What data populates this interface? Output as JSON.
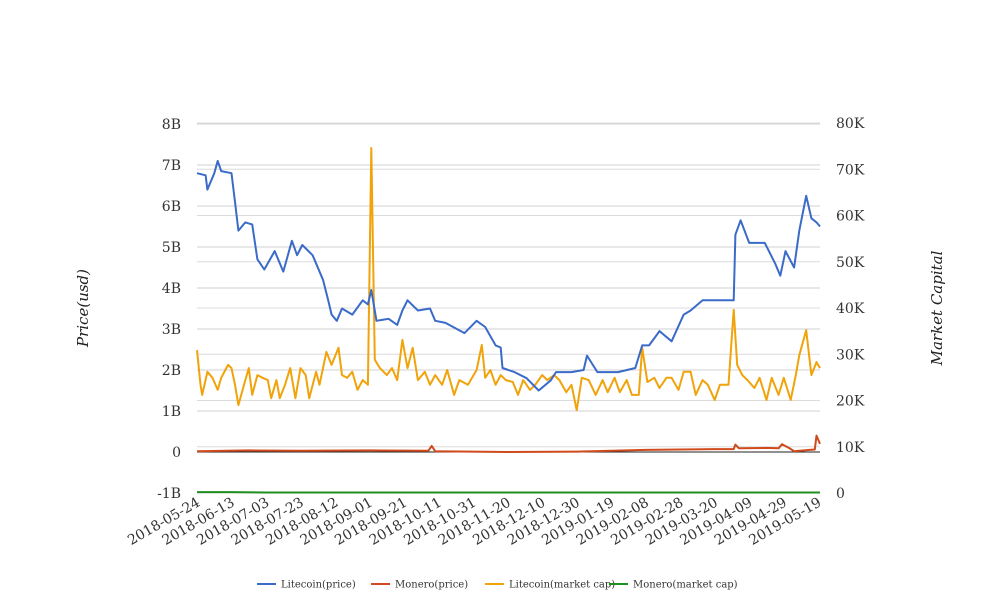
{
  "chart_data": {
    "type": "line",
    "title": "",
    "xlabel": "",
    "ylabel_left": "Price(usd)",
    "ylabel_right": "Market Capital",
    "x_start_date": "2018-05-24",
    "x_unit": "days since 2018-05-24",
    "x_range": [
      0,
      361
    ],
    "x_tick_labels": [
      "2018-05-24",
      "2018-06-13",
      "2018-07-03",
      "2018-07-23",
      "2018-08-12",
      "2018-09-01",
      "2018-09-21",
      "2018-10-11",
      "2018-10-31",
      "2018-11-20",
      "2018-12-10",
      "2018-12-30",
      "2019-01-19",
      "2019-02-08",
      "2019-02-28",
      "2019-03-20",
      "2019-04-09",
      "2019-04-29",
      "2019-05-19"
    ],
    "x_tick_step_days": 20,
    "ylim_left": [
      -1,
      8
    ],
    "ylim_left_unit": "B",
    "y_ticks_left": [
      "-1B",
      "0",
      "1B",
      "2B",
      "3B",
      "4B",
      "5B",
      "6B",
      "7B",
      "8B"
    ],
    "ylim_right": [
      0,
      80
    ],
    "ylim_right_unit": "K",
    "y_ticks_right": [
      "0",
      "10K",
      "20K",
      "30K",
      "40K",
      "50K",
      "60K",
      "70K",
      "80K"
    ],
    "grid": true,
    "legend_placement": "bottom-center",
    "series": [
      {
        "name": "Litecoin(price)",
        "axis": "left",
        "color": "#3a6bc9",
        "points": [
          [
            0,
            6.8
          ],
          [
            5,
            6.75
          ],
          [
            6,
            6.4
          ],
          [
            10,
            6.8
          ],
          [
            12,
            7.1
          ],
          [
            14,
            6.85
          ],
          [
            20,
            6.8
          ],
          [
            22,
            6.1
          ],
          [
            24,
            5.4
          ],
          [
            28,
            5.6
          ],
          [
            32,
            5.55
          ],
          [
            35,
            4.7
          ],
          [
            39,
            4.45
          ],
          [
            45,
            4.9
          ],
          [
            50,
            4.4
          ],
          [
            55,
            5.15
          ],
          [
            58,
            4.8
          ],
          [
            61,
            5.05
          ],
          [
            67,
            4.8
          ],
          [
            73,
            4.2
          ],
          [
            76,
            3.7
          ],
          [
            78,
            3.35
          ],
          [
            81,
            3.2
          ],
          [
            84,
            3.5
          ],
          [
            90,
            3.35
          ],
          [
            96,
            3.7
          ],
          [
            99,
            3.6
          ],
          [
            101,
            3.95
          ],
          [
            104,
            3.2
          ],
          [
            111,
            3.25
          ],
          [
            116,
            3.1
          ],
          [
            119,
            3.45
          ],
          [
            122,
            3.7
          ],
          [
            128,
            3.45
          ],
          [
            135,
            3.5
          ],
          [
            138,
            3.2
          ],
          [
            144,
            3.15
          ],
          [
            155,
            2.9
          ],
          [
            162,
            3.2
          ],
          [
            167,
            3.05
          ],
          [
            173,
            2.6
          ],
          [
            176,
            2.55
          ],
          [
            177,
            2.05
          ],
          [
            184,
            1.95
          ],
          [
            191,
            1.8
          ],
          [
            198,
            1.5
          ],
          [
            205,
            1.75
          ],
          [
            208,
            1.95
          ],
          [
            217,
            1.95
          ],
          [
            224,
            2.0
          ],
          [
            226,
            2.35
          ],
          [
            232,
            1.95
          ],
          [
            244,
            1.95
          ],
          [
            254,
            2.05
          ],
          [
            258,
            2.6
          ],
          [
            262,
            2.6
          ],
          [
            268,
            2.95
          ],
          [
            275,
            2.7
          ],
          [
            282,
            3.35
          ],
          [
            286,
            3.45
          ],
          [
            293,
            3.7
          ],
          [
            303,
            3.7
          ],
          [
            311,
            3.7
          ],
          [
            312,
            5.3
          ],
          [
            315,
            5.65
          ],
          [
            320,
            5.1
          ],
          [
            329,
            5.1
          ],
          [
            335,
            4.6
          ],
          [
            338,
            4.3
          ],
          [
            341,
            4.9
          ],
          [
            346,
            4.5
          ],
          [
            349,
            5.4
          ],
          [
            353,
            6.25
          ],
          [
            356,
            5.7
          ],
          [
            359,
            5.6
          ],
          [
            361,
            5.5
          ]
        ]
      },
      {
        "name": "Monero(price)",
        "axis": "left",
        "color": "#d04a1e",
        "points": [
          [
            0,
            0.02
          ],
          [
            30,
            0.04
          ],
          [
            60,
            0.03
          ],
          [
            100,
            0.04
          ],
          [
            134,
            0.03
          ],
          [
            136,
            0.15
          ],
          [
            138,
            0.02
          ],
          [
            180,
            0.0
          ],
          [
            220,
            0.01
          ],
          [
            260,
            0.05
          ],
          [
            300,
            0.07
          ],
          [
            311,
            0.07
          ],
          [
            312,
            0.18
          ],
          [
            314,
            0.09
          ],
          [
            330,
            0.1
          ],
          [
            337,
            0.09
          ],
          [
            339,
            0.19
          ],
          [
            343,
            0.1
          ],
          [
            346,
            0.02
          ],
          [
            355,
            0.05
          ],
          [
            358,
            0.06
          ],
          [
            359,
            0.4
          ],
          [
            361,
            0.2
          ]
        ]
      },
      {
        "name": "Litecoin(market cap)",
        "axis": "right",
        "color": "#f0a30a",
        "points": [
          [
            0,
            30.9
          ],
          [
            2,
            23.4
          ],
          [
            3,
            21.2
          ],
          [
            6,
            26.2
          ],
          [
            9,
            24.9
          ],
          [
            12,
            22.3
          ],
          [
            14,
            24.9
          ],
          [
            18,
            27.7
          ],
          [
            20,
            27.0
          ],
          [
            22,
            23.4
          ],
          [
            24,
            19.0
          ],
          [
            28,
            24.4
          ],
          [
            30,
            27.0
          ],
          [
            32,
            21.2
          ],
          [
            35,
            25.5
          ],
          [
            38,
            24.9
          ],
          [
            41,
            24.4
          ],
          [
            43,
            20.5
          ],
          [
            46,
            24.4
          ],
          [
            48,
            20.5
          ],
          [
            51,
            23.4
          ],
          [
            54,
            27.0
          ],
          [
            57,
            20.5
          ],
          [
            60,
            27.0
          ],
          [
            63,
            25.5
          ],
          [
            65,
            20.5
          ],
          [
            69,
            26.2
          ],
          [
            71,
            23.4
          ],
          [
            75,
            30.5
          ],
          [
            78,
            27.7
          ],
          [
            82,
            31.4
          ],
          [
            84,
            25.5
          ],
          [
            87,
            24.9
          ],
          [
            90,
            26.2
          ],
          [
            93,
            22.3
          ],
          [
            96,
            24.4
          ],
          [
            99,
            23.4
          ],
          [
            101,
            74.6
          ],
          [
            103,
            28.8
          ],
          [
            106,
            27.0
          ],
          [
            110,
            25.5
          ],
          [
            113,
            27.0
          ],
          [
            116,
            24.4
          ],
          [
            119,
            33.1
          ],
          [
            122,
            27.0
          ],
          [
            125,
            31.4
          ],
          [
            128,
            24.4
          ],
          [
            132,
            26.2
          ],
          [
            135,
            23.4
          ],
          [
            138,
            25.5
          ],
          [
            142,
            23.4
          ],
          [
            145,
            26.6
          ],
          [
            149,
            21.2
          ],
          [
            152,
            24.4
          ],
          [
            157,
            23.4
          ],
          [
            162,
            26.6
          ],
          [
            165,
            32.0
          ],
          [
            167,
            24.9
          ],
          [
            170,
            26.6
          ],
          [
            173,
            23.4
          ],
          [
            176,
            25.5
          ],
          [
            179,
            24.4
          ],
          [
            183,
            24.0
          ],
          [
            186,
            21.2
          ],
          [
            189,
            24.4
          ],
          [
            193,
            22.3
          ],
          [
            196,
            23.4
          ],
          [
            200,
            25.5
          ],
          [
            203,
            24.4
          ],
          [
            207,
            25.5
          ],
          [
            210,
            24.4
          ],
          [
            214,
            21.8
          ],
          [
            217,
            23.4
          ],
          [
            220,
            17.9
          ],
          [
            223,
            24.9
          ],
          [
            227,
            24.4
          ],
          [
            231,
            21.2
          ],
          [
            235,
            24.4
          ],
          [
            238,
            21.8
          ],
          [
            242,
            24.9
          ],
          [
            245,
            21.8
          ],
          [
            249,
            24.4
          ],
          [
            252,
            21.2
          ],
          [
            256,
            21.2
          ],
          [
            258,
            31.4
          ],
          [
            261,
            24.0
          ],
          [
            265,
            24.9
          ],
          [
            268,
            22.7
          ],
          [
            272,
            24.9
          ],
          [
            275,
            24.9
          ],
          [
            279,
            22.3
          ],
          [
            282,
            26.2
          ],
          [
            286,
            26.2
          ],
          [
            289,
            21.2
          ],
          [
            293,
            24.4
          ],
          [
            296,
            23.4
          ],
          [
            300,
            20.1
          ],
          [
            303,
            23.4
          ],
          [
            308,
            23.4
          ],
          [
            311,
            39.6
          ],
          [
            313,
            27.7
          ],
          [
            316,
            25.5
          ],
          [
            319,
            24.4
          ],
          [
            323,
            22.7
          ],
          [
            326,
            24.9
          ],
          [
            330,
            20.1
          ],
          [
            333,
            24.9
          ],
          [
            337,
            21.2
          ],
          [
            340,
            24.9
          ],
          [
            344,
            20.1
          ],
          [
            347,
            25.5
          ],
          [
            349,
            29.8
          ],
          [
            353,
            35.2
          ],
          [
            356,
            25.5
          ],
          [
            359,
            28.3
          ],
          [
            361,
            27.0
          ]
        ]
      },
      {
        "name": "Monero(market cap)",
        "axis": "right",
        "color": "#1f8f1f",
        "points": [
          [
            0,
            0.2
          ],
          [
            20,
            0.2
          ],
          [
            40,
            0.1
          ],
          [
            361,
            0.1
          ]
        ]
      }
    ]
  }
}
